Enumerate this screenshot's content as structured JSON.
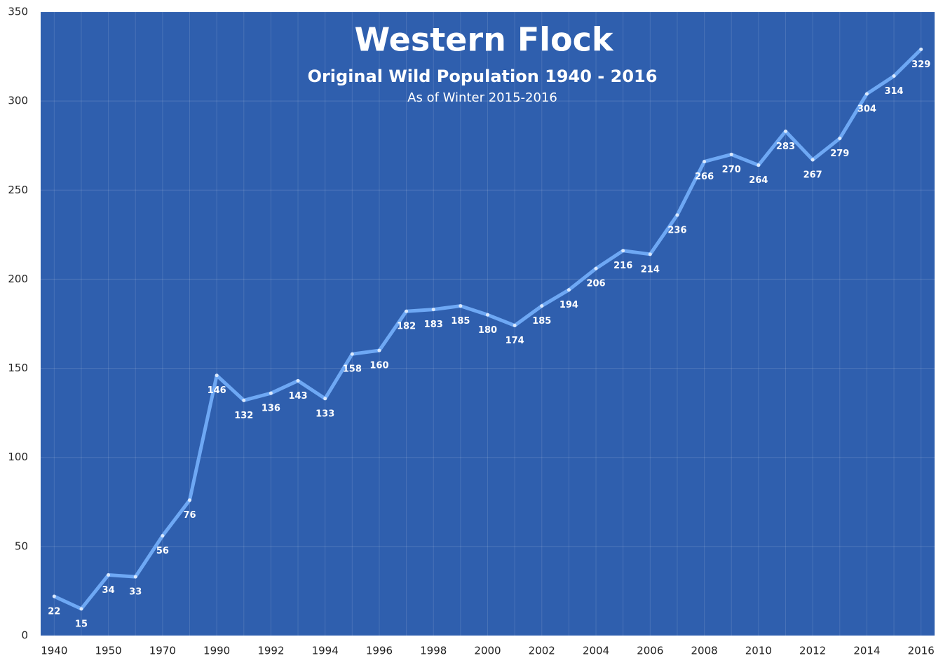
{
  "chart_data": {
    "type": "line",
    "title": "Western Flock",
    "subtitle": "Original Wild Population 1940 - 2016",
    "note": "As of Winter 2015-2016",
    "categories": [
      "1940",
      null,
      "1950",
      null,
      "1970",
      null,
      "1990",
      null,
      "1992",
      null,
      "1994",
      null,
      "1996",
      null,
      "1998",
      null,
      "2000",
      null,
      "2002",
      null,
      "2004",
      null,
      "2006",
      null,
      "2008",
      null,
      "2010",
      null,
      "2012",
      null,
      "2014",
      null,
      "2016"
    ],
    "values": [
      22,
      15,
      34,
      33,
      56,
      76,
      146,
      132,
      136,
      143,
      133,
      158,
      160,
      182,
      183,
      185,
      180,
      174,
      185,
      194,
      206,
      216,
      214,
      236,
      266,
      270,
      264,
      283,
      267,
      279,
      304,
      314,
      329
    ],
    "color": "#6ea8f4",
    "background": "#2f5fae",
    "ylim": [
      0,
      350
    ],
    "yticks": [
      0,
      50,
      100,
      150,
      200,
      250,
      300,
      350
    ],
    "grid": true
  }
}
